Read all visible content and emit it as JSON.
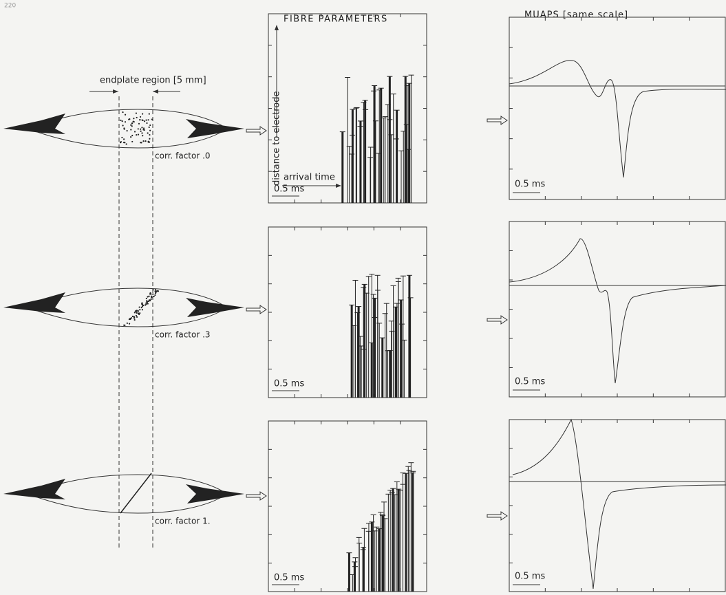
{
  "page_number": "220",
  "headers": {
    "fibre": "FIBRE PARAMETERS",
    "muaps": "MUAPS [same scale]"
  },
  "endplate_label": "endplate region [5 mm]",
  "axis_labels": {
    "y": "distance to electrode",
    "x": "arrival time"
  },
  "rows": [
    {
      "corr_label": "corr. factor .0",
      "fibre_scale": "0.5 ms",
      "muap_scale": "0.5 ms"
    },
    {
      "corr_label": "corr. factor .3",
      "fibre_scale": "0.5 ms",
      "muap_scale": "0.5 ms"
    },
    {
      "corr_label": "corr. factor 1.",
      "fibre_scale": "0.5 ms",
      "muap_scale": "0.5 ms"
    }
  ]
}
